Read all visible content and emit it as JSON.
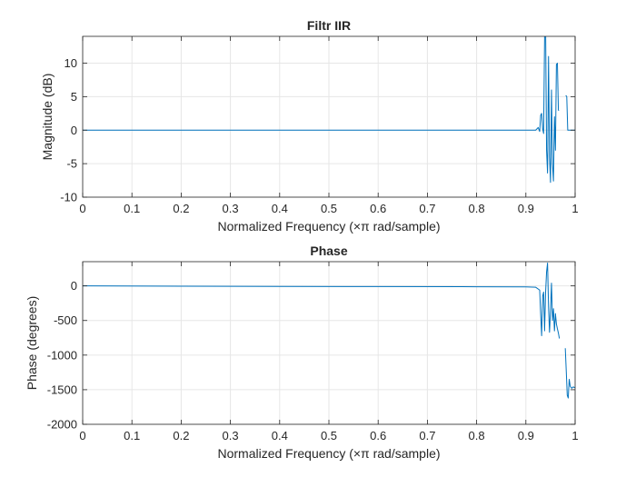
{
  "chart_data": [
    {
      "type": "line",
      "title": "Filtr IIR",
      "xlabel": "Normalized Frequency  (×π rad/sample)",
      "ylabel": "Magnitude (dB)",
      "xlim": [
        0,
        1
      ],
      "ylim": [
        -10,
        14
      ],
      "xticks": [
        0,
        0.1,
        0.2,
        0.3,
        0.4,
        0.5,
        0.6,
        0.7,
        0.8,
        0.9,
        1
      ],
      "yticks": [
        -10,
        -5,
        0,
        5,
        10
      ],
      "grid": true,
      "line_color": "#0072BD",
      "series": [
        {
          "segments": [
            [
              [
                0,
                0
              ],
              [
                0.3,
                0
              ],
              [
                0.6,
                0
              ],
              [
                0.9,
                0
              ],
              [
                0.92,
                0
              ],
              [
                0.925,
                0.4
              ],
              [
                0.928,
                -0.2
              ],
              [
                0.93,
                2.2
              ],
              [
                0.932,
                2.5
              ],
              [
                0.934,
                0.2
              ],
              [
                0.936,
                -0.5
              ],
              [
                0.938,
                14
              ],
              [
                0.94,
                16
              ],
              [
                0.942,
                -3
              ],
              [
                0.944,
                -6.4
              ],
              [
                0.946,
                11
              ],
              [
                0.948,
                -4
              ],
              [
                0.95,
                -7.8
              ],
              [
                0.952,
                6
              ],
              [
                0.954,
                -5
              ],
              [
                0.956,
                -7.6
              ],
              [
                0.958,
                2
              ],
              [
                0.96,
                -3
              ],
              [
                0.962,
                9.8
              ],
              [
                0.964,
                10
              ],
              [
                0.966,
                3
              ],
              [
                0.967,
                2.9
              ]
            ],
            [
              [
                0.981,
                5.2
              ],
              [
                0.983,
                5
              ],
              [
                0.985,
                0
              ],
              [
                0.99,
                0
              ],
              [
                1,
                0
              ]
            ]
          ]
        }
      ]
    },
    {
      "type": "line",
      "title": "Phase",
      "xlabel": "Normalized Frequency  (×π rad/sample)",
      "ylabel": "Phase (degrees)",
      "xlim": [
        0,
        1
      ],
      "ylim": [
        -2000,
        350
      ],
      "xticks": [
        0,
        0.1,
        0.2,
        0.3,
        0.4,
        0.5,
        0.6,
        0.7,
        0.8,
        0.9,
        1
      ],
      "yticks": [
        -2000,
        -1500,
        -1000,
        -500,
        0
      ],
      "grid": true,
      "line_color": "#0072BD",
      "series": [
        {
          "segments": [
            [
              [
                0,
                0
              ],
              [
                0.2,
                -5
              ],
              [
                0.4,
                -8
              ],
              [
                0.6,
                -10
              ],
              [
                0.8,
                -12
              ],
              [
                0.9,
                -15
              ],
              [
                0.92,
                -20
              ],
              [
                0.928,
                -60
              ],
              [
                0.93,
                -400
              ],
              [
                0.932,
                -720
              ],
              [
                0.934,
                -150
              ],
              [
                0.936,
                -90
              ],
              [
                0.938,
                -650
              ],
              [
                0.94,
                -100
              ],
              [
                0.942,
                200
              ],
              [
                0.944,
                330
              ],
              [
                0.946,
                -300
              ],
              [
                0.948,
                -670
              ],
              [
                0.95,
                -350
              ],
              [
                0.952,
                40
              ],
              [
                0.954,
                -500
              ],
              [
                0.956,
                -330
              ],
              [
                0.958,
                -650
              ],
              [
                0.96,
                -400
              ],
              [
                0.962,
                -550
              ],
              [
                0.964,
                -620
              ],
              [
                0.966,
                -680
              ],
              [
                0.968,
                -760
              ]
            ],
            [
              [
                0.98,
                -900
              ],
              [
                0.982,
                -1230
              ],
              [
                0.984,
                -1580
              ],
              [
                0.986,
                -1620
              ],
              [
                0.988,
                -1350
              ],
              [
                0.99,
                -1450
              ],
              [
                0.993,
                -1480
              ],
              [
                0.996,
                -1460
              ],
              [
                1,
                -1470
              ]
            ]
          ]
        }
      ]
    }
  ]
}
